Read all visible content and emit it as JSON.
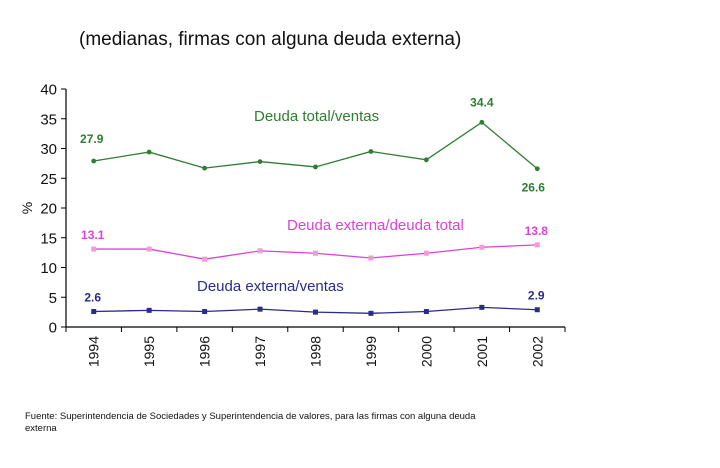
{
  "chart_data": {
    "type": "line",
    "title": "",
    "subtitle": "(medianas, firmas con alguna deuda externa)",
    "xlabel": "",
    "ylabel": "%",
    "ylim": [
      0,
      40
    ],
    "yticks": [
      0,
      5,
      10,
      15,
      20,
      25,
      30,
      35,
      40
    ],
    "grid": false,
    "categories": [
      "1994",
      "1995",
      "1996",
      "1997",
      "1998",
      "1999",
      "2000",
      "2001",
      "2002"
    ],
    "series": [
      {
        "name": "Deuda total/ventas",
        "color": "#2e7d32",
        "marker": "circle",
        "values": [
          27.9,
          29.4,
          26.7,
          27.8,
          26.9,
          29.5,
          28.1,
          34.4,
          26.6
        ],
        "labels": [
          {
            "index": 0,
            "text": "27.9"
          },
          {
            "index": 7,
            "text": "34.4"
          },
          {
            "index": 8,
            "text": "26.6"
          }
        ]
      },
      {
        "name": "Deuda externa/deuda total",
        "color": "#e040d8",
        "marker_color": "#f39ad8",
        "marker": "square",
        "values": [
          13.1,
          13.1,
          11.4,
          12.8,
          12.4,
          11.6,
          12.4,
          13.4,
          13.8
        ],
        "labels": [
          {
            "index": 0,
            "text": "13.1"
          },
          {
            "index": 8,
            "text": "13.8"
          }
        ]
      },
      {
        "name": "Deuda externa/ventas",
        "color": "#2b2b8c",
        "marker": "square",
        "values": [
          2.6,
          2.8,
          2.6,
          3.0,
          2.5,
          2.3,
          2.6,
          3.3,
          2.9
        ],
        "labels": [
          {
            "index": 0,
            "text": "2.6"
          },
          {
            "index": 8,
            "text": "2.9"
          }
        ]
      }
    ],
    "source_note": "Fuente: Superintendencia de Sociedades y Superintendencia de valores, para las firmas con alguna deuda externa"
  }
}
